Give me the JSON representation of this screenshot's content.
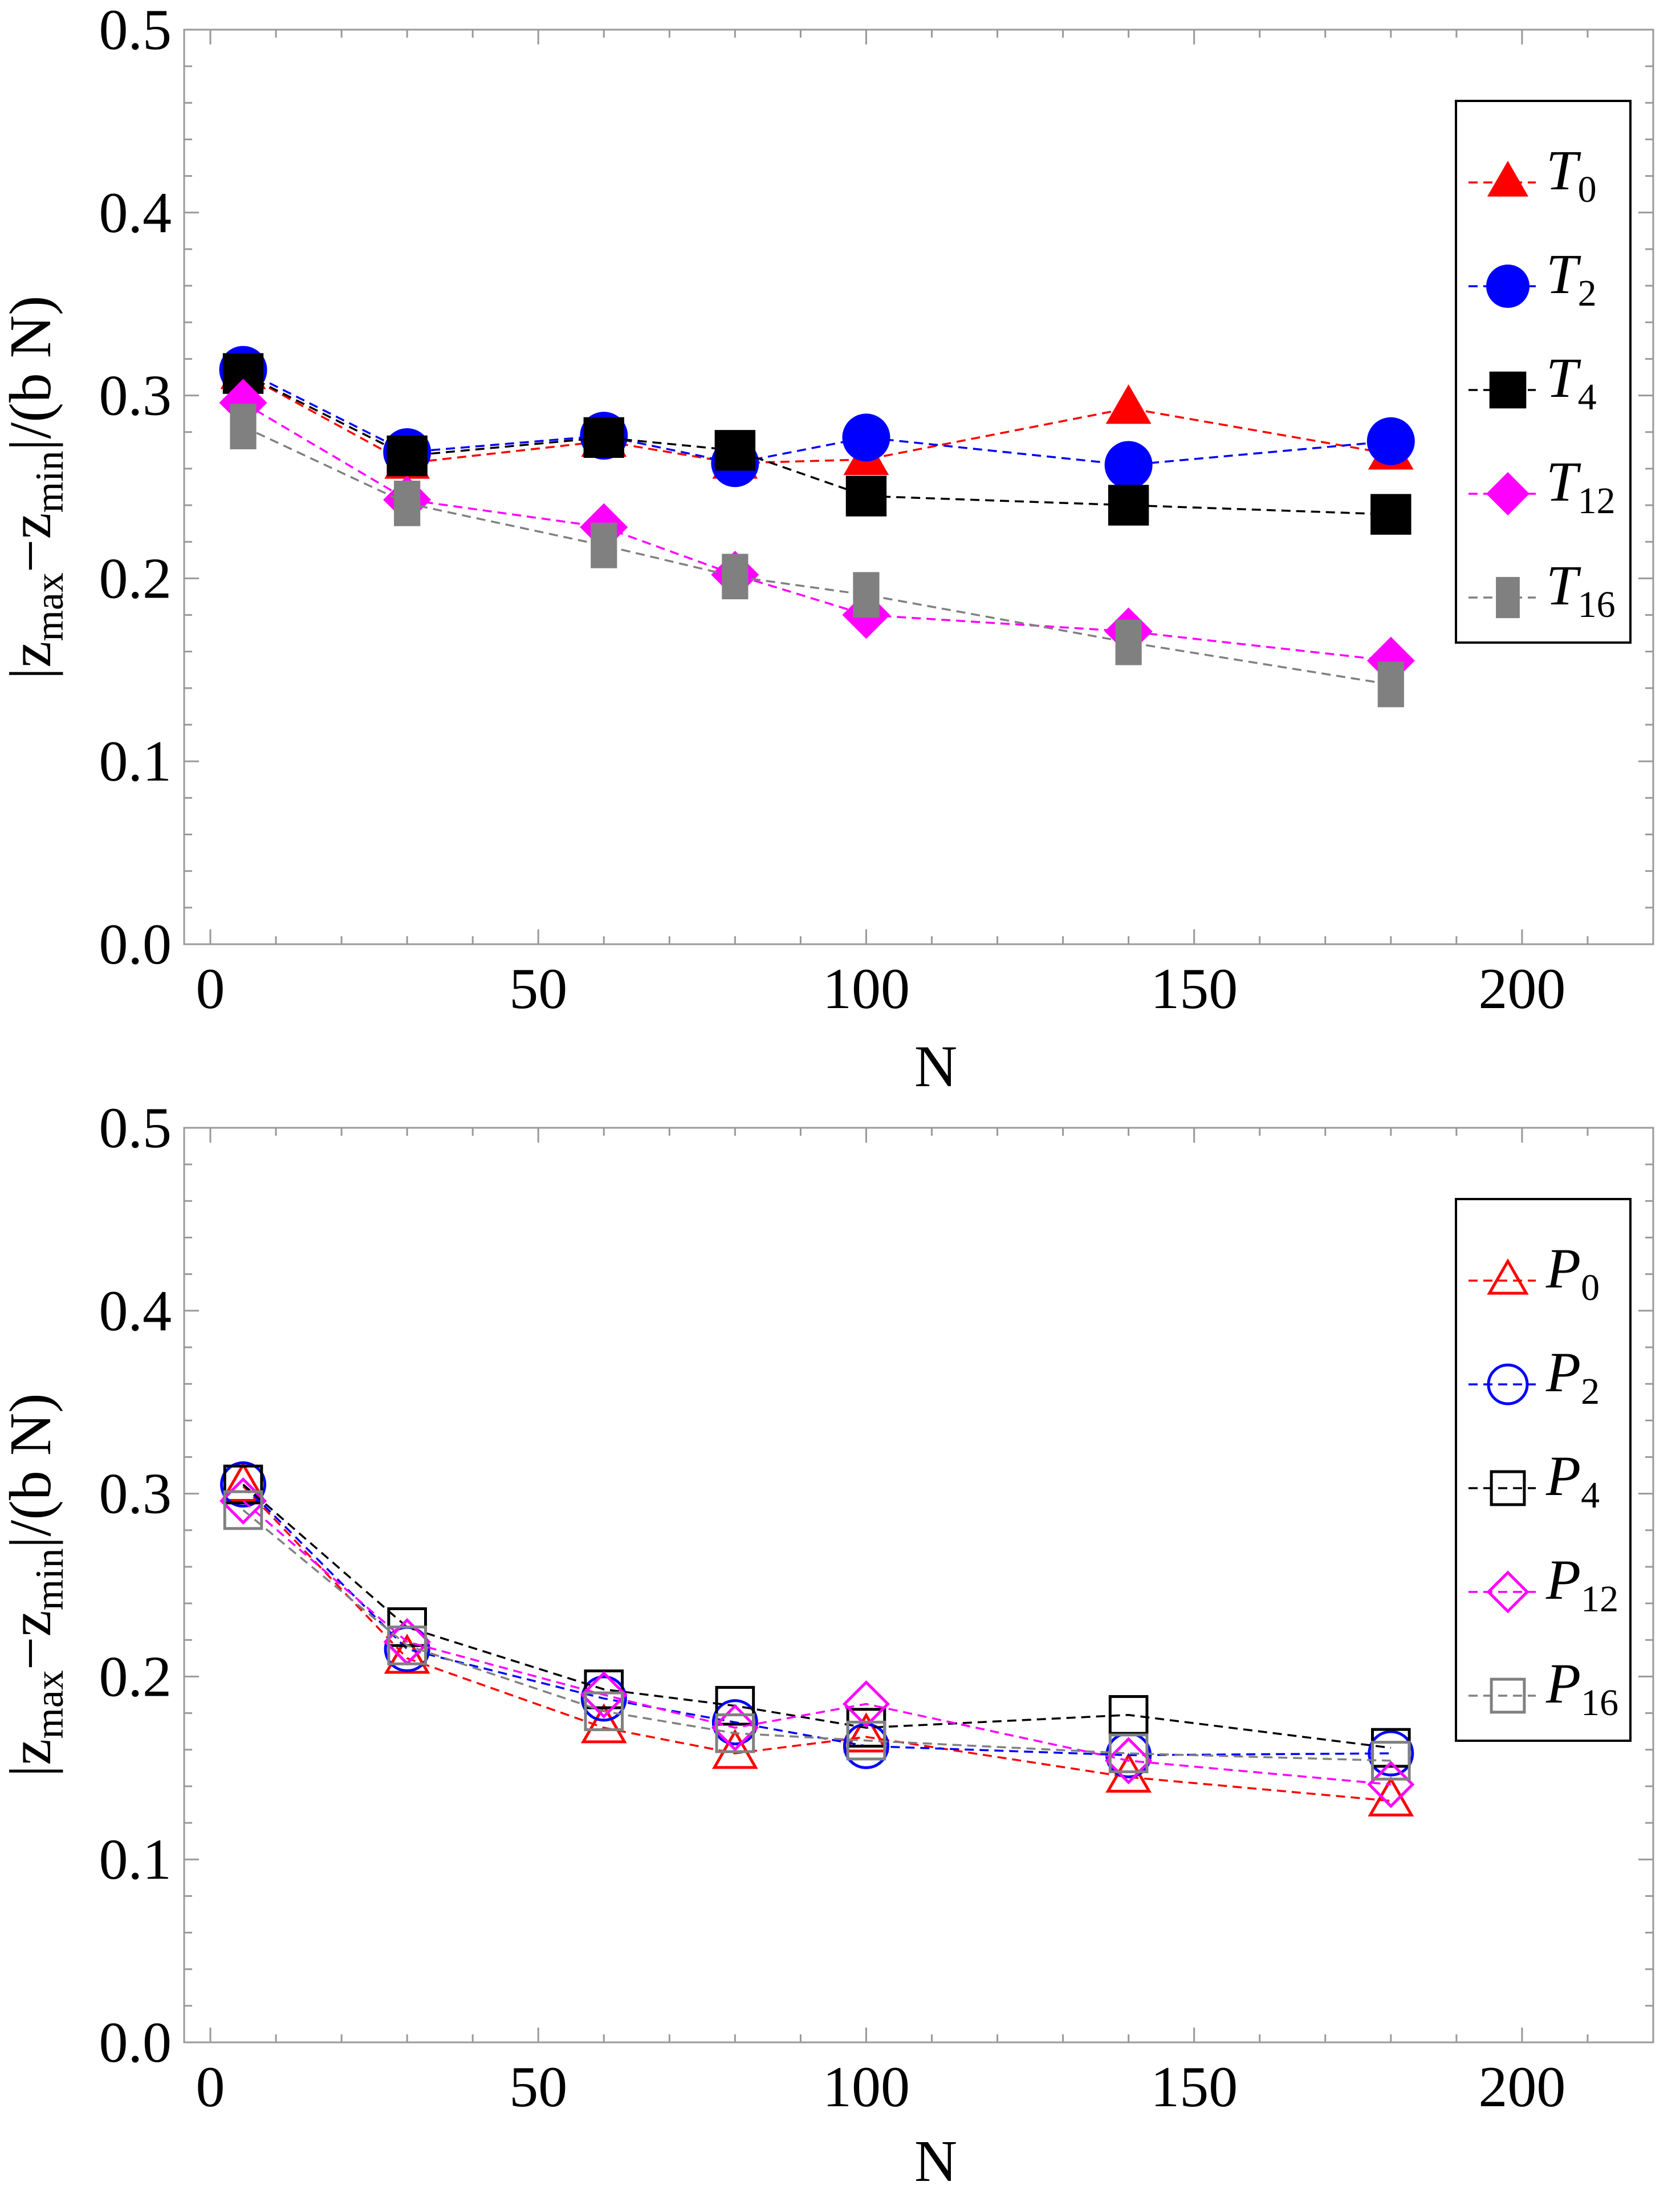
{
  "chart_data": [
    {
      "type": "scatter",
      "panel": "top",
      "xlabel": "N",
      "ylabel": "|z max − z min|/(b N)",
      "ylabel_parts": {
        "open": "|z",
        "sub1": "max",
        "minus": "−z",
        "sub2": "min",
        "close": "|/(b N)"
      },
      "xlim": [
        -4,
        220
      ],
      "ylim": [
        0.0,
        0.5
      ],
      "xticks": [
        "0",
        "50",
        "100",
        "150",
        "200"
      ],
      "yticks": [
        "0.0",
        "0.1",
        "0.2",
        "0.3",
        "0.4",
        "0.5"
      ],
      "legend_position": "top-right",
      "x": [
        5,
        30,
        60,
        80,
        100,
        140,
        180
      ],
      "series": [
        {
          "name": "T0",
          "base": "T",
          "sub": "0",
          "color": "#ff0000",
          "marker": "triangle",
          "filled": true,
          "values": [
            0.312,
            0.263,
            0.275,
            0.263,
            0.265,
            0.293,
            0.268
          ]
        },
        {
          "name": "T2",
          "base": "T",
          "sub": "2",
          "color": "#0000ff",
          "marker": "circle",
          "filled": true,
          "values": [
            0.314,
            0.269,
            0.278,
            0.263,
            0.277,
            0.262,
            0.275
          ]
        },
        {
          "name": "T4",
          "base": "T",
          "sub": "4",
          "color": "#000000",
          "marker": "square",
          "filled": true,
          "values": [
            0.312,
            0.267,
            0.277,
            0.27,
            0.245,
            0.24,
            0.235
          ]
        },
        {
          "name": "T12",
          "base": "T",
          "sub": "12",
          "color": "#ff00ff",
          "marker": "diamond",
          "filled": true,
          "values": [
            0.296,
            0.243,
            0.228,
            0.202,
            0.18,
            0.171,
            0.155
          ]
        },
        {
          "name": "T16",
          "base": "T",
          "sub": "16",
          "color": "#808080",
          "marker": "rect",
          "filled": true,
          "values": [
            0.283,
            0.241,
            0.218,
            0.201,
            0.191,
            0.165,
            0.142
          ]
        }
      ]
    },
    {
      "type": "scatter",
      "panel": "bottom",
      "xlabel": "N",
      "ylabel": "|z max − z min|/(b N)",
      "ylabel_parts": {
        "open": "|z",
        "sub1": "max",
        "minus": "−z",
        "sub2": "min",
        "close": "|/(b N)"
      },
      "xlim": [
        -4,
        220
      ],
      "ylim": [
        0.0,
        0.5
      ],
      "xticks": [
        "0",
        "50",
        "100",
        "150",
        "200"
      ],
      "yticks": [
        "0.0",
        "0.1",
        "0.2",
        "0.3",
        "0.4",
        "0.5"
      ],
      "legend_position": "top-right",
      "x": [
        5,
        30,
        60,
        80,
        100,
        140,
        180
      ],
      "series": [
        {
          "name": "P0",
          "base": "P",
          "sub": "0",
          "color": "#ff0000",
          "marker": "triangle",
          "filled": false,
          "values": [
            0.304,
            0.21,
            0.172,
            0.158,
            0.167,
            0.145,
            0.132
          ]
        },
        {
          "name": "P2",
          "base": "P",
          "sub": "2",
          "color": "#0000ff",
          "marker": "circle",
          "filled": false,
          "values": [
            0.305,
            0.215,
            0.188,
            0.175,
            0.162,
            0.157,
            0.158
          ]
        },
        {
          "name": "P4",
          "base": "P",
          "sub": "4",
          "color": "#000000",
          "marker": "square",
          "filled": false,
          "values": [
            0.305,
            0.227,
            0.193,
            0.184,
            0.172,
            0.179,
            0.161
          ]
        },
        {
          "name": "P12",
          "base": "P",
          "sub": "12",
          "color": "#ff00ff",
          "marker": "diamond",
          "filled": false,
          "values": [
            0.296,
            0.219,
            0.19,
            0.172,
            0.185,
            0.154,
            0.141
          ]
        },
        {
          "name": "P16",
          "base": "P",
          "sub": "16",
          "color": "#808080",
          "marker": "square",
          "filled": false,
          "values": [
            0.291,
            0.217,
            0.181,
            0.169,
            0.165,
            0.158,
            0.154
          ]
        }
      ]
    }
  ]
}
